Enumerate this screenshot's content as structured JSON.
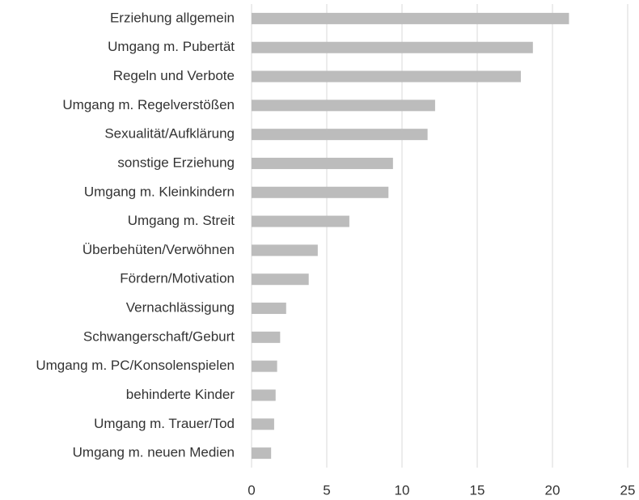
{
  "chart_data": {
    "type": "hbar",
    "categories": [
      "Erziehung allgemein",
      "Umgang m. Pubertät",
      "Regeln und Verbote",
      "Umgang m. Regelverstößen",
      "Sexualität/Aufklärung",
      "sonstige Erziehung",
      "Umgang m. Kleinkindern",
      "Umgang m. Streit",
      "Überbehüten/Verwöhnen",
      "Fördern/Motivation",
      "Vernachlässigung",
      "Schwangerschaft/Geburt",
      "Umgang m. PC/Konsolenspielen",
      "behinderte Kinder",
      "Umgang m. Trauer/Tod",
      "Umgang m. neuen Medien"
    ],
    "values": [
      21.1,
      18.7,
      17.9,
      12.2,
      11.7,
      9.4,
      9.1,
      6.5,
      4.4,
      3.8,
      2.3,
      1.9,
      1.7,
      1.6,
      1.5,
      1.3
    ],
    "color": "#bcbcbc",
    "xlim": [
      0,
      25
    ],
    "xticks": [
      0,
      5,
      10,
      15,
      20,
      25
    ],
    "grid": true
  }
}
